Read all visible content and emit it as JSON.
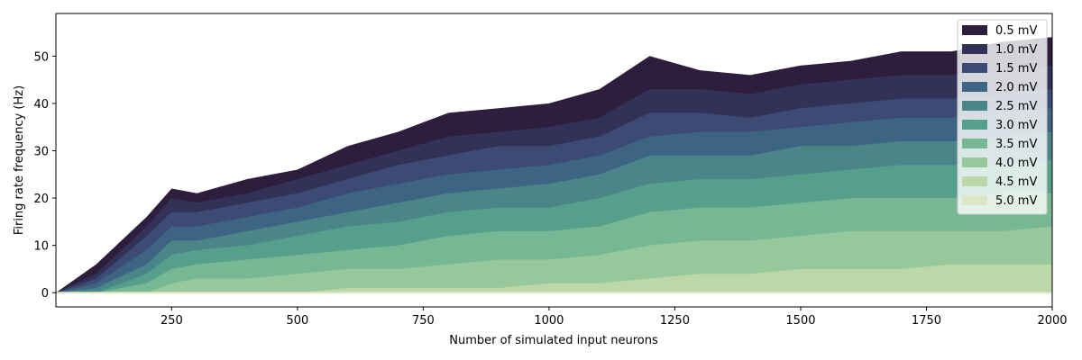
{
  "chart_data": {
    "type": "area",
    "title": "",
    "xlabel": "Number of simulated input neurons",
    "ylabel": "Firing rate frequency (Hz)",
    "xlim": [
      20,
      2000
    ],
    "ylim": [
      -3,
      59
    ],
    "xticks": [
      250,
      500,
      750,
      1000,
      1250,
      1500,
      1750,
      2000
    ],
    "yticks": [
      0,
      10,
      20,
      30,
      40,
      50
    ],
    "grid": false,
    "legend_position": "top-right",
    "x": [
      20,
      100,
      200,
      250,
      300,
      400,
      500,
      600,
      700,
      800,
      900,
      1000,
      1100,
      1200,
      1300,
      1400,
      1500,
      1600,
      1700,
      1800,
      1900,
      2000
    ],
    "series": [
      {
        "name": "0.5 mV",
        "color": "#2d1e3e",
        "values": [
          0,
          6,
          16,
          22,
          21,
          24,
          26,
          31,
          34,
          38,
          39,
          40,
          43,
          50,
          47,
          46,
          48,
          49,
          51,
          51,
          53,
          54
        ]
      },
      {
        "name": "1.0 mV",
        "color": "#323258",
        "values": [
          0,
          4,
          14,
          20,
          19,
          21,
          24,
          27,
          30,
          33,
          34,
          35,
          37,
          43,
          43,
          42,
          44,
          45,
          46,
          46,
          47,
          48
        ]
      },
      {
        "name": "1.5 mV",
        "color": "#3b4b74",
        "values": [
          0,
          3,
          12,
          17,
          17,
          19,
          21,
          24,
          27,
          29,
          31,
          31,
          33,
          38,
          38,
          37,
          39,
          40,
          41,
          41,
          42,
          43
        ]
      },
      {
        "name": "2.0 mV",
        "color": "#3e6483",
        "values": [
          0,
          2,
          9,
          14,
          14,
          16,
          18,
          21,
          23,
          25,
          26,
          27,
          29,
          33,
          34,
          34,
          35,
          36,
          37,
          37,
          38,
          39
        ]
      },
      {
        "name": "2.5 mV",
        "color": "#4a8588",
        "values": [
          0,
          1,
          6,
          11,
          11,
          13,
          15,
          17,
          19,
          21,
          22,
          23,
          25,
          29,
          29,
          29,
          31,
          31,
          32,
          32,
          33,
          34
        ]
      },
      {
        "name": "3.0 mV",
        "color": "#56a08b",
        "values": [
          0,
          0,
          4,
          8,
          9,
          10,
          12,
          14,
          15,
          17,
          18,
          18,
          20,
          23,
          24,
          24,
          25,
          26,
          27,
          27,
          27,
          28
        ]
      },
      {
        "name": "3.5 mV",
        "color": "#76b893",
        "values": [
          0,
          0,
          2,
          5,
          6,
          7,
          8,
          9,
          10,
          12,
          13,
          13,
          14,
          17,
          18,
          18,
          19,
          20,
          20,
          20,
          21,
          21
        ]
      },
      {
        "name": "4.0 mV",
        "color": "#97c89c",
        "values": [
          0,
          0,
          0,
          2,
          3,
          3,
          4,
          5,
          5,
          6,
          7,
          7,
          8,
          10,
          11,
          11,
          12,
          13,
          13,
          13,
          13,
          14
        ]
      },
      {
        "name": "4.5 mV",
        "color": "#bcd8a8",
        "values": [
          0,
          0,
          0,
          0,
          0,
          0,
          0,
          1,
          1,
          1,
          1,
          2,
          2,
          3,
          4,
          4,
          5,
          5,
          5,
          6,
          6,
          6
        ]
      },
      {
        "name": "5.0 mV",
        "color": "#dde6c7",
        "values": [
          0,
          0,
          0,
          0,
          0,
          0,
          0,
          0,
          0,
          0,
          0,
          0,
          0,
          0,
          0,
          0,
          0,
          0,
          0,
          0,
          0,
          0
        ]
      }
    ]
  }
}
